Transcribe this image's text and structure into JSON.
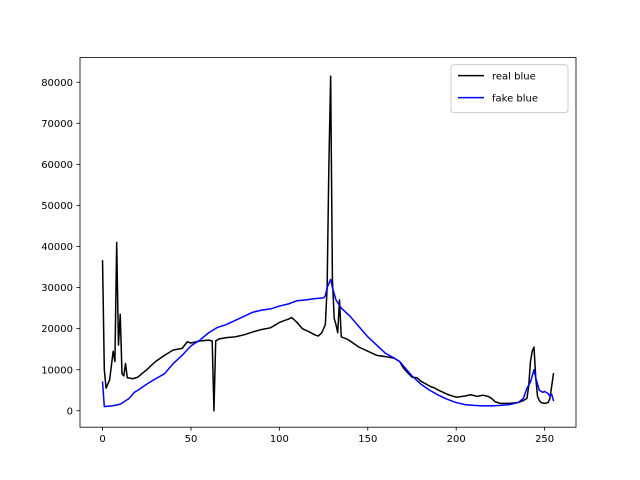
{
  "chart_data": {
    "type": "line",
    "title": "",
    "xlabel": "",
    "ylabel": "",
    "xlim": [
      -12.75,
      267.75
    ],
    "ylim": [
      -4000,
      86000
    ],
    "xticks": [
      0,
      50,
      100,
      150,
      200,
      250
    ],
    "yticks": [
      0,
      10000,
      20000,
      30000,
      40000,
      50000,
      60000,
      70000,
      80000
    ],
    "grid": false,
    "legend_position": "top-right",
    "series": [
      {
        "name": "real blue",
        "color": "#000000",
        "points": [
          [
            0,
            36500
          ],
          [
            1,
            10000
          ],
          [
            2,
            5500
          ],
          [
            3,
            6500
          ],
          [
            4,
            7500
          ],
          [
            5,
            11000
          ],
          [
            6,
            14500
          ],
          [
            7,
            12000
          ],
          [
            8,
            41000
          ],
          [
            9,
            16000
          ],
          [
            10,
            23500
          ],
          [
            11,
            9000
          ],
          [
            12,
            8500
          ],
          [
            13,
            11500
          ],
          [
            14,
            8000
          ],
          [
            15,
            8000
          ],
          [
            17,
            7800
          ],
          [
            20,
            8200
          ],
          [
            25,
            10000
          ],
          [
            30,
            12000
          ],
          [
            35,
            13500
          ],
          [
            40,
            14800
          ],
          [
            45,
            15200
          ],
          [
            48,
            16800
          ],
          [
            50,
            16500
          ],
          [
            55,
            17000
          ],
          [
            60,
            17200
          ],
          [
            62,
            17000
          ],
          [
            63,
            0
          ],
          [
            64,
            17000
          ],
          [
            66,
            17500
          ],
          [
            70,
            17800
          ],
          [
            75,
            18000
          ],
          [
            80,
            18500
          ],
          [
            85,
            19200
          ],
          [
            90,
            19800
          ],
          [
            95,
            20200
          ],
          [
            100,
            21500
          ],
          [
            103,
            22000
          ],
          [
            105,
            22300
          ],
          [
            107,
            22700
          ],
          [
            110,
            21500
          ],
          [
            113,
            20000
          ],
          [
            117,
            19200
          ],
          [
            120,
            18500
          ],
          [
            122,
            18200
          ],
          [
            124,
            19000
          ],
          [
            126,
            21000
          ],
          [
            127,
            30000
          ],
          [
            128,
            60000
          ],
          [
            129,
            81500
          ],
          [
            130,
            32000
          ],
          [
            131,
            22500
          ],
          [
            132,
            21000
          ],
          [
            133,
            19000
          ],
          [
            134,
            27000
          ],
          [
            135,
            18000
          ],
          [
            138,
            17500
          ],
          [
            140,
            17000
          ],
          [
            145,
            15500
          ],
          [
            150,
            14500
          ],
          [
            155,
            13500
          ],
          [
            160,
            13200
          ],
          [
            165,
            12800
          ],
          [
            168,
            12000
          ],
          [
            170,
            10500
          ],
          [
            172,
            9500
          ],
          [
            175,
            8200
          ],
          [
            178,
            8000
          ],
          [
            180,
            7200
          ],
          [
            183,
            6500
          ],
          [
            185,
            6000
          ],
          [
            188,
            5500
          ],
          [
            190,
            5000
          ],
          [
            195,
            4000
          ],
          [
            200,
            3300
          ],
          [
            205,
            3600
          ],
          [
            208,
            3900
          ],
          [
            212,
            3500
          ],
          [
            215,
            3800
          ],
          [
            218,
            3500
          ],
          [
            220,
            3000
          ],
          [
            222,
            2200
          ],
          [
            225,
            1800
          ],
          [
            230,
            1800
          ],
          [
            235,
            2000
          ],
          [
            238,
            2500
          ],
          [
            240,
            3000
          ],
          [
            241,
            6000
          ],
          [
            242,
            12000
          ],
          [
            243,
            14500
          ],
          [
            244,
            15500
          ],
          [
            245,
            8000
          ],
          [
            246,
            3500
          ],
          [
            247,
            2500
          ],
          [
            248,
            2000
          ],
          [
            250,
            1800
          ],
          [
            252,
            2000
          ],
          [
            253,
            3000
          ],
          [
            254,
            6000
          ],
          [
            255,
            9000
          ]
        ]
      },
      {
        "name": "fake blue",
        "color": "#0000ff",
        "points": [
          [
            0,
            7000
          ],
          [
            1,
            1000
          ],
          [
            5,
            1200
          ],
          [
            8,
            1400
          ],
          [
            10,
            1600
          ],
          [
            15,
            3000
          ],
          [
            18,
            4500
          ],
          [
            20,
            5000
          ],
          [
            25,
            6500
          ],
          [
            30,
            7800
          ],
          [
            35,
            9000
          ],
          [
            40,
            11500
          ],
          [
            45,
            13500
          ],
          [
            50,
            15800
          ],
          [
            55,
            17200
          ],
          [
            60,
            19000
          ],
          [
            65,
            20300
          ],
          [
            70,
            21000
          ],
          [
            75,
            22000
          ],
          [
            80,
            23000
          ],
          [
            85,
            24000
          ],
          [
            90,
            24500
          ],
          [
            95,
            24800
          ],
          [
            100,
            25500
          ],
          [
            105,
            26000
          ],
          [
            110,
            26800
          ],
          [
            115,
            27000
          ],
          [
            120,
            27300
          ],
          [
            125,
            27500
          ],
          [
            126,
            28000
          ],
          [
            127,
            30000
          ],
          [
            129,
            32000
          ],
          [
            130,
            30000
          ],
          [
            132,
            27000
          ],
          [
            135,
            25000
          ],
          [
            140,
            23000
          ],
          [
            145,
            20500
          ],
          [
            150,
            18000
          ],
          [
            155,
            16000
          ],
          [
            160,
            14000
          ],
          [
            165,
            12800
          ],
          [
            168,
            12000
          ],
          [
            170,
            11000
          ],
          [
            175,
            8500
          ],
          [
            180,
            6500
          ],
          [
            185,
            5000
          ],
          [
            190,
            3800
          ],
          [
            195,
            2800
          ],
          [
            200,
            2000
          ],
          [
            205,
            1500
          ],
          [
            210,
            1300
          ],
          [
            215,
            1200
          ],
          [
            220,
            1200
          ],
          [
            225,
            1300
          ],
          [
            230,
            1500
          ],
          [
            235,
            2000
          ],
          [
            238,
            3000
          ],
          [
            240,
            5500
          ],
          [
            242,
            7000
          ],
          [
            244,
            10000
          ],
          [
            245,
            8000
          ],
          [
            247,
            5000
          ],
          [
            249,
            4500
          ],
          [
            250,
            4700
          ],
          [
            252,
            4200
          ],
          [
            253,
            3500
          ],
          [
            254,
            4000
          ],
          [
            255,
            2500
          ]
        ]
      }
    ]
  }
}
